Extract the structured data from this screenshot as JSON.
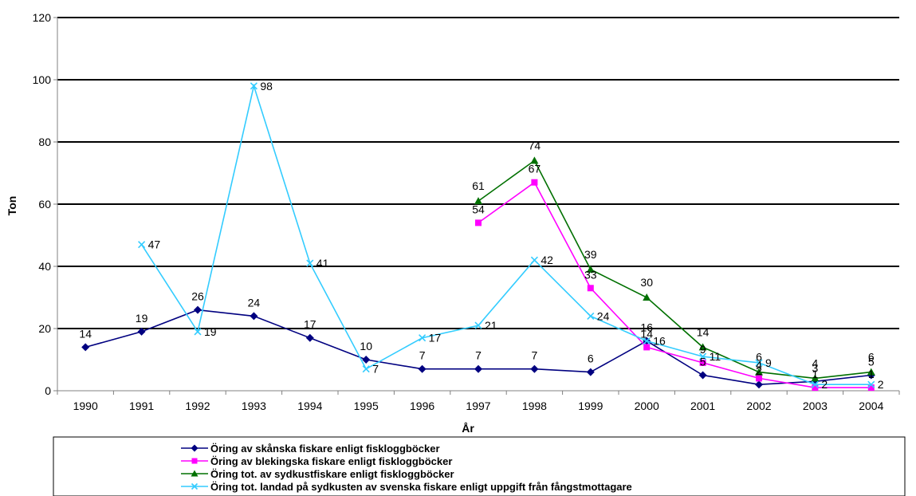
{
  "chart_data": {
    "type": "line",
    "title": "",
    "xlabel": "År",
    "ylabel": "Ton",
    "ylim": [
      0,
      120
    ],
    "yticks": [
      0,
      20,
      40,
      60,
      80,
      100,
      120
    ],
    "grid": true,
    "legend_position": "bottom",
    "categories": [
      "1990",
      "1991",
      "1992",
      "1993",
      "1994",
      "1995",
      "1996",
      "1997",
      "1998",
      "1999",
      "2000",
      "2001",
      "2002",
      "2003",
      "2004"
    ],
    "series": [
      {
        "name": "Öring av skånska fiskare enligt fiskloggböcker",
        "color": "#000080",
        "marker": "diamond",
        "values": [
          14,
          19,
          26,
          24,
          17,
          10,
          7,
          7,
          7,
          6,
          16,
          5,
          2,
          3,
          5
        ],
        "labels": [
          "14",
          "19",
          "26",
          "24",
          "17",
          "10",
          "7",
          "7",
          "7",
          "6",
          "16",
          "5",
          "2",
          "3",
          "5"
        ]
      },
      {
        "name": "Öring av blekingska fiskare enligt fiskloggböcker",
        "color": "#FF00FF",
        "marker": "square",
        "values": [
          null,
          null,
          null,
          null,
          null,
          null,
          null,
          54,
          67,
          33,
          14,
          9,
          4,
          1,
          1
        ],
        "labels": [
          null,
          null,
          null,
          null,
          null,
          null,
          null,
          "54",
          "67",
          "33",
          "14",
          "9",
          "4",
          "1",
          "1"
        ]
      },
      {
        "name": "Öring tot. av sydkustfiskare enligt fiskloggböcker",
        "color": "#007000",
        "marker": "triangle",
        "values": [
          null,
          null,
          null,
          null,
          null,
          null,
          null,
          61,
          74,
          39,
          30,
          14,
          6,
          4,
          6
        ],
        "labels": [
          null,
          null,
          null,
          null,
          null,
          null,
          null,
          "61",
          "74",
          "39",
          "30",
          "14",
          "6",
          "4",
          "6"
        ]
      },
      {
        "name": "Öring tot. landad på sydkusten av svenska fiskare enligt uppgift från fångstmottagare",
        "color": "#33CCFF",
        "marker": "x",
        "values": [
          null,
          47,
          19,
          98,
          41,
          7,
          17,
          21,
          42,
          24,
          16,
          11,
          9,
          2,
          2
        ],
        "labels": [
          null,
          "47",
          "19",
          "98",
          "41",
          "7",
          "17",
          "21",
          "42",
          "24",
          "16",
          "11",
          "9",
          "2",
          "2"
        ]
      }
    ]
  }
}
